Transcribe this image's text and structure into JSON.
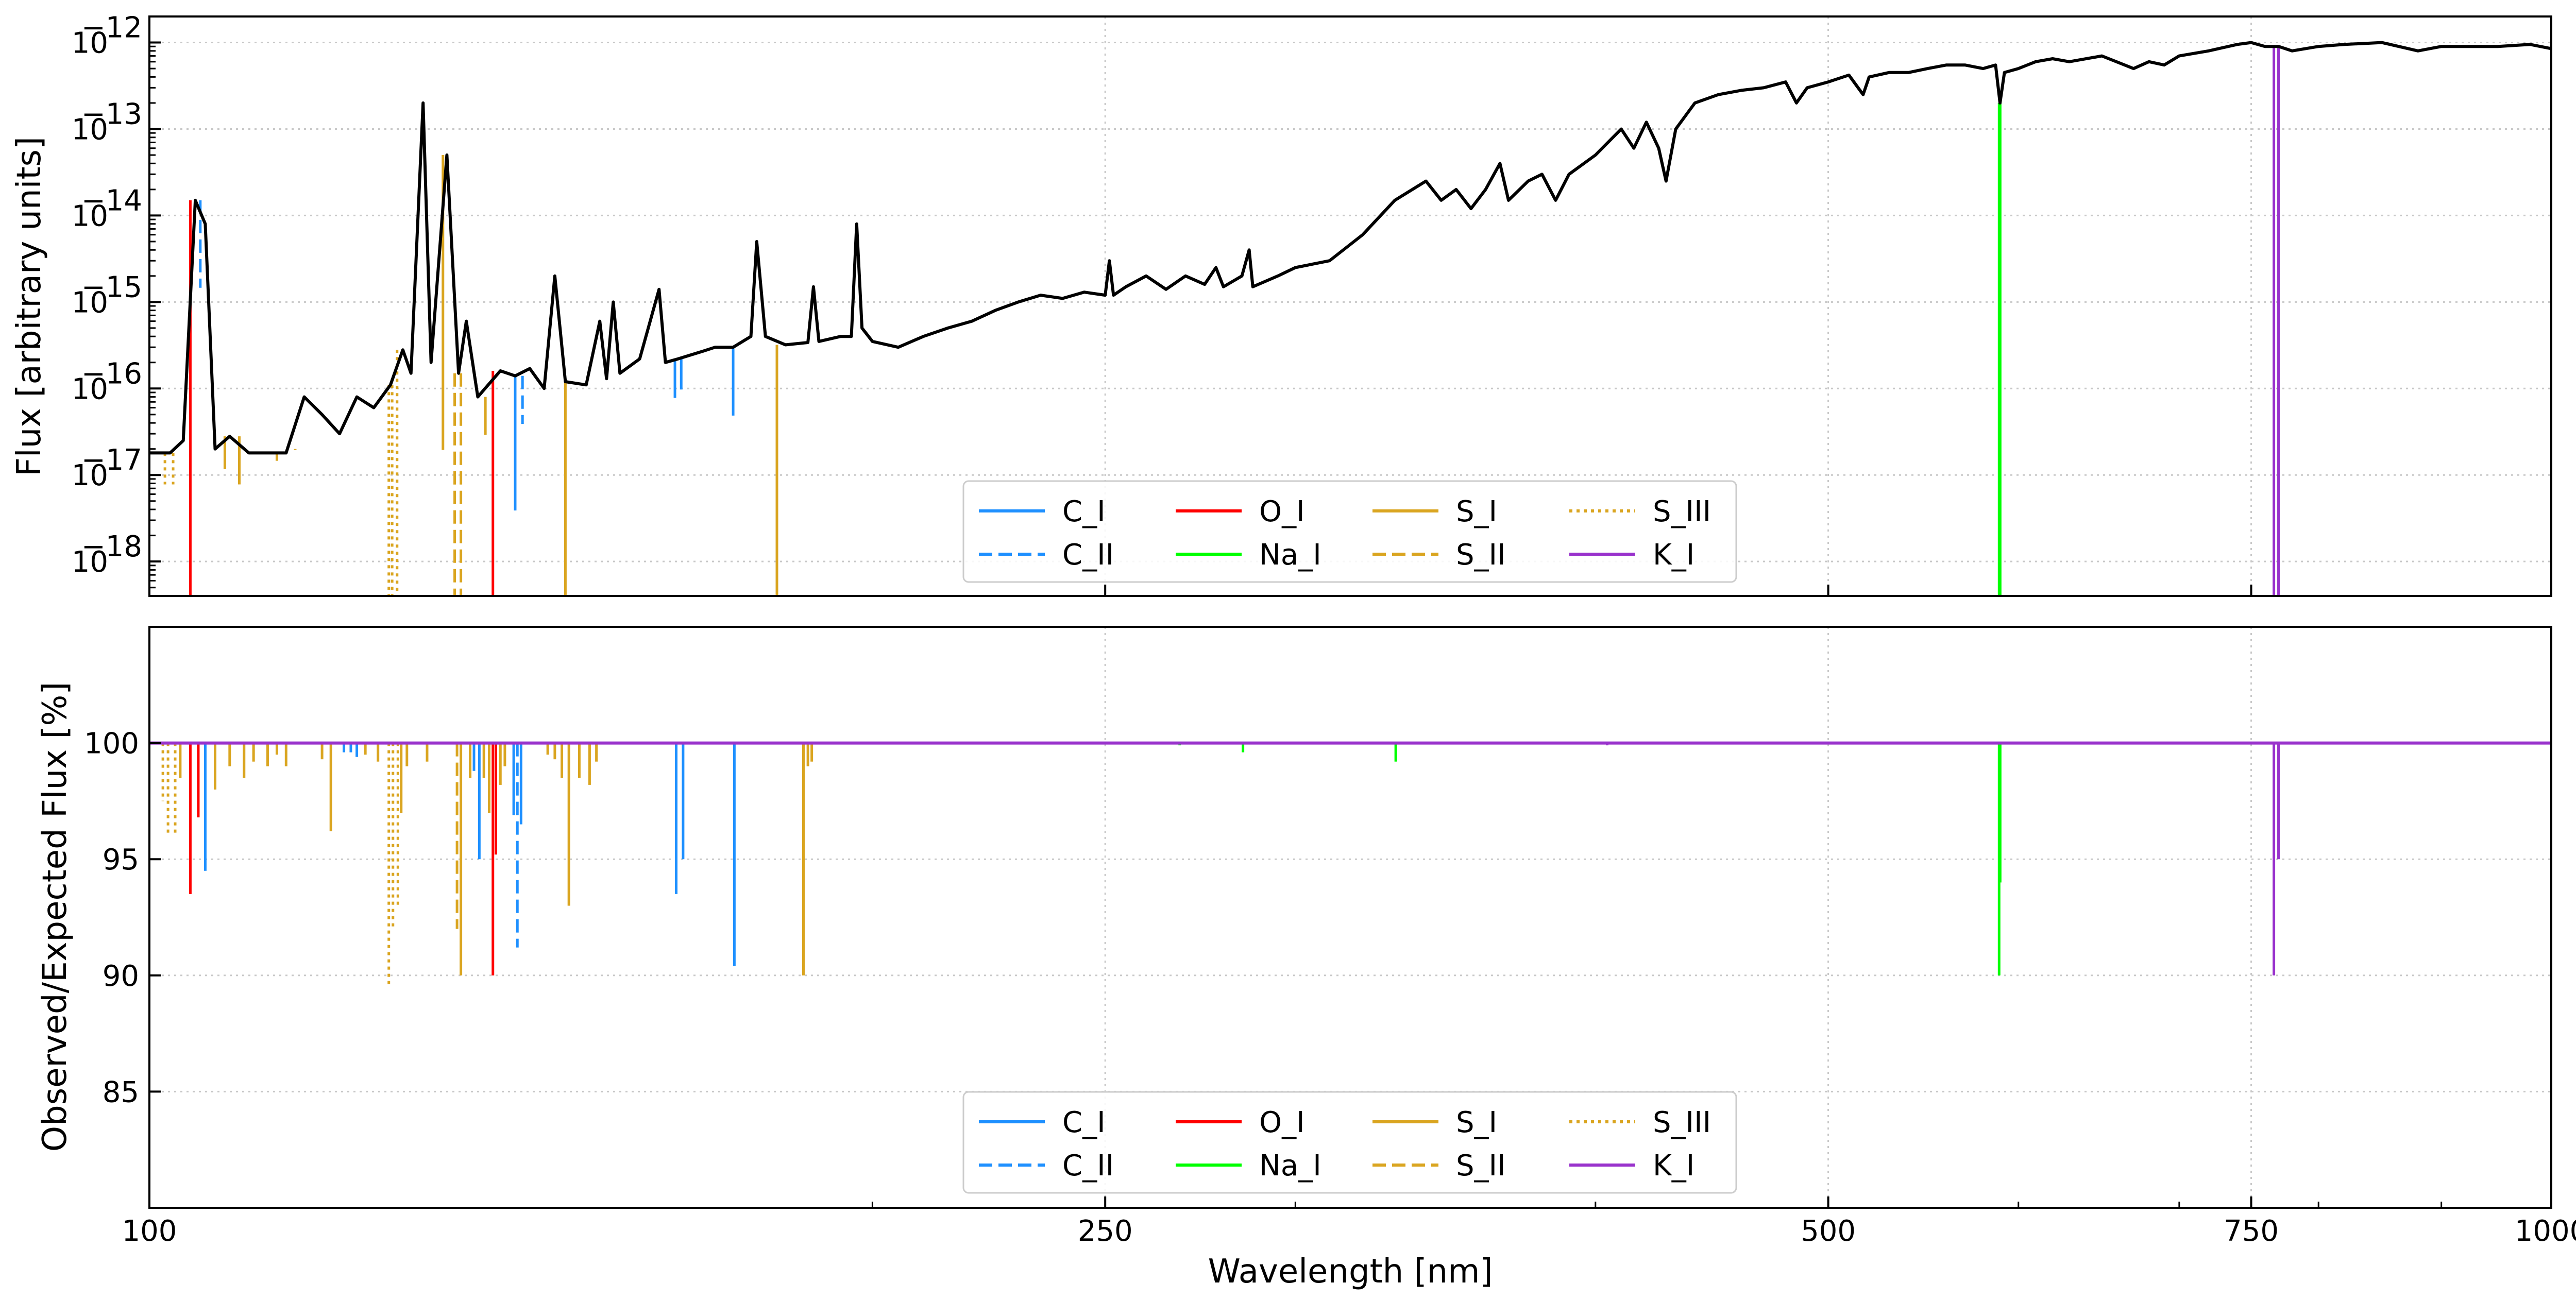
{
  "chart_data": [
    {
      "type": "line",
      "panel": "top",
      "title": "",
      "xlabel": "",
      "ylabel": "Flux [arbitrary units]",
      "xscale": "log",
      "yscale": "log",
      "xlim": [
        100,
        1000
      ],
      "ylim": [
        4e-19,
        2e-12
      ],
      "grid": true,
      "legend_position": "lower-center",
      "x_ticks": [
        100,
        250,
        500,
        750,
        1000
      ],
      "y_ticks": [
        {
          "value": 1e-18,
          "label_base": "10",
          "label_exp": "−18"
        },
        {
          "value": 1e-17,
          "label_base": "10",
          "label_exp": "−17"
        },
        {
          "value": 1e-16,
          "label_base": "10",
          "label_exp": "−16"
        },
        {
          "value": 1e-15,
          "label_base": "10",
          "label_exp": "−15"
        },
        {
          "value": 1e-14,
          "label_base": "10",
          "label_exp": "−14"
        },
        {
          "value": 1e-13,
          "label_base": "10",
          "label_exp": "−13"
        },
        {
          "value": 1e-12,
          "label_base": "10",
          "label_exp": "−12"
        }
      ],
      "spectrum": {
        "color": "#000000",
        "points": [
          [
            100,
            1.8e-17
          ],
          [
            102,
            1.8e-17
          ],
          [
            103.3,
            2.5e-17
          ],
          [
            104.5,
            1.5e-14
          ],
          [
            105.5,
            8e-15
          ],
          [
            106.5,
            2e-17
          ],
          [
            108,
            2.8e-17
          ],
          [
            110,
            1.8e-17
          ],
          [
            114,
            1.8e-17
          ],
          [
            116,
            8e-17
          ],
          [
            118,
            5e-17
          ],
          [
            120,
            3e-17
          ],
          [
            122,
            8e-17
          ],
          [
            124,
            6e-17
          ],
          [
            126,
            1.1e-16
          ],
          [
            127.5,
            2.8e-16
          ],
          [
            128.5,
            1.5e-16
          ],
          [
            130,
            2e-13
          ],
          [
            131,
            2e-16
          ],
          [
            133,
            5e-14
          ],
          [
            134.5,
            1.5e-16
          ],
          [
            135.5,
            6e-16
          ],
          [
            137,
            8e-17
          ],
          [
            140,
            1.6e-16
          ],
          [
            142,
            1.4e-16
          ],
          [
            144,
            1.7e-16
          ],
          [
            146,
            1e-16
          ],
          [
            147.5,
            2e-15
          ],
          [
            149,
            1.2e-16
          ],
          [
            152,
            1.1e-16
          ],
          [
            154,
            6e-16
          ],
          [
            155,
            1.3e-16
          ],
          [
            156,
            1e-15
          ],
          [
            157,
            1.5e-16
          ],
          [
            160,
            2.2e-16
          ],
          [
            163,
            1.4e-15
          ],
          [
            164,
            2e-16
          ],
          [
            166,
            2.2e-16
          ],
          [
            170,
            2.7e-16
          ],
          [
            172,
            3e-16
          ],
          [
            175,
            3e-16
          ],
          [
            178,
            4e-16
          ],
          [
            179,
            5e-15
          ],
          [
            180.5,
            4e-16
          ],
          [
            184,
            3.2e-16
          ],
          [
            188,
            3.4e-16
          ],
          [
            189,
            1.5e-15
          ],
          [
            190,
            3.5e-16
          ],
          [
            194,
            4e-16
          ],
          [
            196,
            4e-16
          ],
          [
            197,
            8e-15
          ],
          [
            198,
            5e-16
          ],
          [
            200,
            3.5e-16
          ],
          [
            205,
            3e-16
          ],
          [
            210,
            4e-16
          ],
          [
            215,
            5e-16
          ],
          [
            220,
            6e-16
          ],
          [
            225,
            8e-16
          ],
          [
            230,
            1e-15
          ],
          [
            235,
            1.2e-15
          ],
          [
            240,
            1.1e-15
          ],
          [
            245,
            1.3e-15
          ],
          [
            250,
            1.2e-15
          ],
          [
            251,
            3e-15
          ],
          [
            252,
            1.2e-15
          ],
          [
            255,
            1.5e-15
          ],
          [
            260,
            2e-15
          ],
          [
            265,
            1.4e-15
          ],
          [
            270,
            2e-15
          ],
          [
            275,
            1.6e-15
          ],
          [
            278,
            2.5e-15
          ],
          [
            280,
            1.5e-15
          ],
          [
            285,
            2e-15
          ],
          [
            287,
            4e-15
          ],
          [
            288,
            1.5e-15
          ],
          [
            295,
            2e-15
          ],
          [
            300,
            2.5e-15
          ],
          [
            310,
            3e-15
          ],
          [
            320,
            6e-15
          ],
          [
            330,
            1.5e-14
          ],
          [
            340,
            2.5e-14
          ],
          [
            345,
            1.5e-14
          ],
          [
            350,
            2e-14
          ],
          [
            355,
            1.2e-14
          ],
          [
            360,
            2e-14
          ],
          [
            365,
            4e-14
          ],
          [
            368,
            1.5e-14
          ],
          [
            375,
            2.5e-14
          ],
          [
            380,
            3e-14
          ],
          [
            385,
            1.5e-14
          ],
          [
            390,
            3e-14
          ],
          [
            400,
            5e-14
          ],
          [
            410,
            1e-13
          ],
          [
            415,
            6e-14
          ],
          [
            420,
            1.2e-13
          ],
          [
            425,
            6e-14
          ],
          [
            428,
            2.5e-14
          ],
          [
            432,
            1e-13
          ],
          [
            440,
            2e-13
          ],
          [
            450,
            2.5e-13
          ],
          [
            460,
            2.8e-13
          ],
          [
            470,
            3e-13
          ],
          [
            480,
            3.5e-13
          ],
          [
            485,
            2e-13
          ],
          [
            490,
            3e-13
          ],
          [
            500,
            3.5e-13
          ],
          [
            510,
            4.2e-13
          ],
          [
            517,
            2.5e-13
          ],
          [
            520,
            4e-13
          ],
          [
            530,
            4.5e-13
          ],
          [
            540,
            4.5e-13
          ],
          [
            550,
            5e-13
          ],
          [
            560,
            5.5e-13
          ],
          [
            570,
            5.5e-13
          ],
          [
            580,
            5e-13
          ],
          [
            587,
            5.5e-13
          ],
          [
            589.5,
            2e-13
          ],
          [
            592,
            4.5e-13
          ],
          [
            600,
            5e-13
          ],
          [
            610,
            6e-13
          ],
          [
            620,
            6.5e-13
          ],
          [
            630,
            6e-13
          ],
          [
            650,
            7e-13
          ],
          [
            670,
            5e-13
          ],
          [
            680,
            6e-13
          ],
          [
            690,
            5.5e-13
          ],
          [
            700,
            7e-13
          ],
          [
            720,
            8e-13
          ],
          [
            740,
            9.5e-13
          ],
          [
            750,
            1e-12
          ],
          [
            760,
            9e-13
          ],
          [
            770,
            9e-13
          ],
          [
            780,
            8e-13
          ],
          [
            800,
            9e-13
          ],
          [
            820,
            9.5e-13
          ],
          [
            850,
            1e-12
          ],
          [
            880,
            8e-13
          ],
          [
            900,
            9e-13
          ],
          [
            950,
            9e-13
          ],
          [
            980,
            9.5e-13
          ],
          [
            1000,
            8.5e-13
          ]
        ]
      },
      "absorption_lines": [
        {
          "series": "S_III",
          "x": 101.5,
          "y": 8e-18
        },
        {
          "series": "S_III",
          "x": 102.3,
          "y": 8e-18
        },
        {
          "series": "O_I",
          "x": 104,
          "y": 4e-19
        },
        {
          "series": "C_II",
          "x": 105,
          "y": 1.5e-15
        },
        {
          "series": "S_I",
          "x": 107.5,
          "y": 1.2e-17
        },
        {
          "series": "S_I",
          "x": 109,
          "y": 8e-18
        },
        {
          "series": "S_I",
          "x": 113,
          "y": 1.5e-17
        },
        {
          "series": "S_I",
          "x": 115,
          "y": 2e-17
        },
        {
          "series": "S_III",
          "x": 125.8,
          "y": 4e-19
        },
        {
          "series": "S_III",
          "x": 126.2,
          "y": 4e-19
        },
        {
          "series": "S_III",
          "x": 126.8,
          "y": 4e-19
        },
        {
          "series": "S_II",
          "x": 134,
          "y": 4e-19
        },
        {
          "series": "S_II",
          "x": 134.8,
          "y": 4e-19
        },
        {
          "series": "S_I",
          "x": 132.5,
          "y": 2e-17
        },
        {
          "series": "S_I",
          "x": 138,
          "y": 3e-17
        },
        {
          "series": "O_I",
          "x": 139,
          "y": 4e-19
        },
        {
          "series": "C_I",
          "x": 142,
          "y": 4e-18
        },
        {
          "series": "C_II",
          "x": 143,
          "y": 4e-17
        },
        {
          "series": "S_I",
          "x": 149,
          "y": 4e-19
        },
        {
          "series": "C_I",
          "x": 165.5,
          "y": 8e-17
        },
        {
          "series": "C_I",
          "x": 166.5,
          "y": 1e-16
        },
        {
          "series": "C_I",
          "x": 175,
          "y": 5e-17
        },
        {
          "series": "S_I",
          "x": 182.5,
          "y": 4e-19
        },
        {
          "series": "Na_I",
          "x": 589,
          "y": 4e-19
        },
        {
          "series": "Na_I",
          "x": 589.6,
          "y": 4e-19
        },
        {
          "series": "K_I",
          "x": 766.5,
          "y": 4e-19
        },
        {
          "series": "K_I",
          "x": 769.9,
          "y": 4e-19
        }
      ],
      "legend": [
        "C_I",
        "C_II",
        "O_I",
        "Na_I",
        "S_I",
        "S_II",
        "S_III",
        "K_I"
      ]
    },
    {
      "type": "line",
      "panel": "bottom",
      "title": "",
      "xlabel": "Wavelength [nm]",
      "ylabel": "Observed/Expected Flux [%]",
      "xscale": "log",
      "yscale": "linear",
      "xlim": [
        100,
        1000
      ],
      "ylim": [
        80,
        105
      ],
      "grid": true,
      "legend_position": "lower-center",
      "x_ticks": [
        100,
        250,
        500,
        750,
        1000
      ],
      "y_ticks": [
        85,
        90,
        95,
        100
      ],
      "baseline": 100,
      "absorption_lines": [
        {
          "series": "S_III",
          "x": 101.3,
          "y": 97.5
        },
        {
          "series": "S_III",
          "x": 101.8,
          "y": 96
        },
        {
          "series": "S_III",
          "x": 102.5,
          "y": 96
        },
        {
          "series": "S_I",
          "x": 103,
          "y": 98.5
        },
        {
          "series": "O_I",
          "x": 104,
          "y": 93.5
        },
        {
          "series": "O_I",
          "x": 104.8,
          "y": 96.8
        },
        {
          "series": "C_I",
          "x": 105.5,
          "y": 94.5
        },
        {
          "series": "S_I",
          "x": 106.5,
          "y": 98
        },
        {
          "series": "S_I",
          "x": 108,
          "y": 99
        },
        {
          "series": "S_I",
          "x": 109.5,
          "y": 98.5
        },
        {
          "series": "S_I",
          "x": 110.5,
          "y": 99.2
        },
        {
          "series": "S_I",
          "x": 112,
          "y": 99
        },
        {
          "series": "S_I",
          "x": 113,
          "y": 99.5
        },
        {
          "series": "S_I",
          "x": 114,
          "y": 99
        },
        {
          "series": "S_I",
          "x": 118,
          "y": 99.3
        },
        {
          "series": "S_I",
          "x": 119,
          "y": 96.2
        },
        {
          "series": "C_I",
          "x": 120.5,
          "y": 99.6
        },
        {
          "series": "C_I",
          "x": 121.3,
          "y": 99.6
        },
        {
          "series": "C_I",
          "x": 122,
          "y": 99.4
        },
        {
          "series": "S_I",
          "x": 123,
          "y": 99.5
        },
        {
          "series": "S_I",
          "x": 124.5,
          "y": 99.2
        },
        {
          "series": "S_III",
          "x": 125.8,
          "y": 89.5
        },
        {
          "series": "S_III",
          "x": 126.3,
          "y": 92
        },
        {
          "series": "S_III",
          "x": 126.9,
          "y": 93
        },
        {
          "series": "S_I",
          "x": 127.3,
          "y": 97
        },
        {
          "series": "S_I",
          "x": 128,
          "y": 99
        },
        {
          "series": "S_I",
          "x": 130.5,
          "y": 99.2
        },
        {
          "series": "S_II",
          "x": 134.3,
          "y": 92
        },
        {
          "series": "S_I",
          "x": 134.8,
          "y": 90
        },
        {
          "series": "S_I",
          "x": 136,
          "y": 98.5
        },
        {
          "series": "C_I",
          "x": 136.5,
          "y": 98.8
        },
        {
          "series": "C_I",
          "x": 137.2,
          "y": 95
        },
        {
          "series": "S_I",
          "x": 137.8,
          "y": 98.5
        },
        {
          "series": "S_I",
          "x": 138.5,
          "y": 97
        },
        {
          "series": "O_I",
          "x": 139,
          "y": 90
        },
        {
          "series": "O_I",
          "x": 139.4,
          "y": 95.2
        },
        {
          "series": "S_I",
          "x": 140,
          "y": 98.2
        },
        {
          "series": "S_I",
          "x": 140.6,
          "y": 99
        },
        {
          "series": "C_I",
          "x": 141.8,
          "y": 96.9
        },
        {
          "series": "C_II",
          "x": 142.3,
          "y": 91.2
        },
        {
          "series": "C_I",
          "x": 142.8,
          "y": 96.5
        },
        {
          "series": "S_I",
          "x": 146.5,
          "y": 99.5
        },
        {
          "series": "S_I",
          "x": 147.5,
          "y": 99.3
        },
        {
          "series": "S_I",
          "x": 148.5,
          "y": 98.5
        },
        {
          "series": "S_I",
          "x": 149.5,
          "y": 93
        },
        {
          "series": "S_I",
          "x": 151,
          "y": 98.5
        },
        {
          "series": "S_I",
          "x": 152.5,
          "y": 98.2
        },
        {
          "series": "S_I",
          "x": 153.5,
          "y": 99.2
        },
        {
          "series": "C_I",
          "x": 165.7,
          "y": 93.5
        },
        {
          "series": "C_I",
          "x": 166.8,
          "y": 95
        },
        {
          "series": "C_I",
          "x": 175.2,
          "y": 90.4
        },
        {
          "series": "S_I",
          "x": 187.2,
          "y": 90
        },
        {
          "series": "S_I",
          "x": 188,
          "y": 99
        },
        {
          "series": "S_I",
          "x": 188.7,
          "y": 99.2
        },
        {
          "series": "Na_I",
          "x": 268.5,
          "y": 99.9
        },
        {
          "series": "Na_I",
          "x": 285.3,
          "y": 99.6
        },
        {
          "series": "Na_I",
          "x": 330.3,
          "y": 99.2
        },
        {
          "series": "K_I",
          "x": 404.5,
          "y": 99.9
        },
        {
          "series": "Na_I",
          "x": 589.0,
          "y": 90
        },
        {
          "series": "Na_I",
          "x": 589.6,
          "y": 94
        },
        {
          "series": "K_I",
          "x": 766.5,
          "y": 90
        },
        {
          "series": "K_I",
          "x": 769.9,
          "y": 95
        }
      ],
      "legend": [
        "C_I",
        "C_II",
        "O_I",
        "Na_I",
        "S_I",
        "S_II",
        "S_III",
        "K_I"
      ]
    }
  ],
  "series_styles": {
    "C_I": {
      "color": "#1e90ff",
      "dash": "solid"
    },
    "C_II": {
      "color": "#1e90ff",
      "dash": "dashed"
    },
    "O_I": {
      "color": "#ff0000",
      "dash": "solid"
    },
    "Na_I": {
      "color": "#00ff00",
      "dash": "solid"
    },
    "S_I": {
      "color": "#daa520",
      "dash": "solid"
    },
    "S_II": {
      "color": "#daa520",
      "dash": "dashed"
    },
    "S_III": {
      "color": "#daa520",
      "dash": "dotted"
    },
    "K_I": {
      "color": "#9932cc",
      "dash": "solid"
    }
  }
}
